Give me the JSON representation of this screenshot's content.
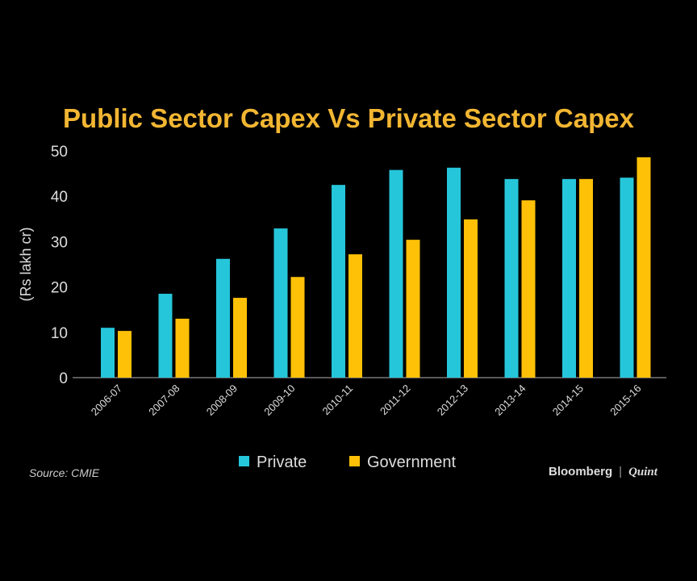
{
  "chart_data": {
    "type": "bar",
    "title": "Public Sector Capex Vs Private Sector Capex",
    "xlabel": "",
    "ylabel": "(Rs lakh cr)",
    "ylim": [
      0,
      50
    ],
    "yticks": [
      0,
      10,
      20,
      30,
      40,
      50
    ],
    "grid": false,
    "legend": "bottom",
    "categories": [
      "2006-07",
      "2007-08",
      "2008-09",
      "2009-10",
      "2010-11",
      "2011-12",
      "2012-13",
      "2013-14",
      "2014-15",
      "2015-16"
    ],
    "series": [
      {
        "name": "Private",
        "color": "#26c6da",
        "values": [
          11.0,
          18.5,
          26.2,
          32.9,
          42.5,
          45.8,
          46.3,
          43.8,
          43.8,
          44.1
        ]
      },
      {
        "name": "Government",
        "color": "#ffc107",
        "values": [
          10.3,
          13.0,
          17.6,
          22.2,
          27.2,
          30.4,
          34.9,
          39.1,
          43.8,
          48.6
        ]
      }
    ]
  },
  "footer": {
    "source": "Source: CMIE",
    "brand_left": "Bloomberg",
    "brand_sep": "|",
    "brand_right": "Quint"
  }
}
